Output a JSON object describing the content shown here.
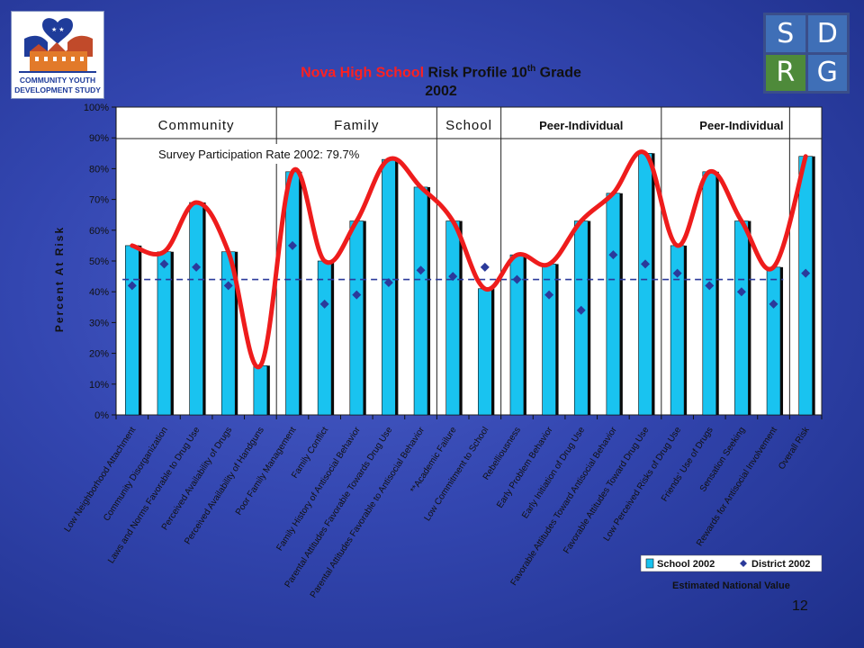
{
  "page": {
    "number": "12"
  },
  "logo_left": {
    "text_line1": "COMMUNITY YOUTH",
    "text_line2": "DEVELOPMENT STUDY"
  },
  "logo_right": {
    "letters": [
      "S",
      "D",
      "R",
      "G"
    ]
  },
  "title": {
    "line1_red": "Nova High School",
    "line1_black": " Risk Profile 10",
    "line1_sup": "th",
    "line1_tail": " Grade",
    "line2": "2002"
  },
  "note": "Estimated National Value",
  "chart_data": {
    "type": "bar",
    "ylabel": "Percent At Risk",
    "ylim": [
      0,
      100
    ],
    "yticks": [
      "0%",
      "10%",
      "20%",
      "30%",
      "40%",
      "50%",
      "60%",
      "70%",
      "80%",
      "90%",
      "100%"
    ],
    "grid": false,
    "domains": [
      {
        "label": "Community",
        "span": [
          0,
          4
        ]
      },
      {
        "label": "Family",
        "span": [
          5,
          9
        ]
      },
      {
        "label": "School",
        "span": [
          10,
          11
        ]
      },
      {
        "label": "Peer-Individual",
        "span": [
          12,
          16
        ]
      },
      {
        "label": "Peer-Individual",
        "span": [
          17,
          21
        ]
      }
    ],
    "annotation": "Survey Participation Rate 2002: 79.7%",
    "categories": [
      "Low Neighborhood Attachment",
      "Community Disorganization",
      "Laws and Norms Favorable to Drug Use",
      "Perceived Availability of Drugs",
      "Perceived Availability of Handguns",
      "Poor Family Management",
      "Family Conflict",
      "Family History of Antisocial Behavior",
      "Parental Attitudes Favorable Towards Drug Use",
      "Parental Attitudes Favorable to Antisocial Behavior",
      "**Academic Failure",
      "Low Commitment to School",
      "Rebelliousness",
      "Early Problem Behavior",
      "Early Initiation of Drug Use",
      "Favorable Attitudes Toward Antisocial Behavior",
      "Favorable Attitudes Toward Drug Use",
      "Low Perceived Risks of Drug Use",
      "Friends' Use of Drugs",
      "Sensation Seeking",
      "Rewards for Antisocial Involvement",
      "Overall Risk"
    ],
    "series": [
      {
        "name": "School 2002",
        "type": "bar",
        "color": "#19c3f0",
        "values": [
          55,
          53,
          69,
          53,
          16,
          79,
          50,
          63,
          83,
          74,
          63,
          41,
          52,
          49,
          63,
          72,
          85,
          55,
          79,
          63,
          48,
          84
        ]
      },
      {
        "name": "District 2002",
        "type": "marker",
        "color": "#2b3a9a",
        "values": [
          42,
          49,
          48,
          42,
          null,
          55,
          36,
          39,
          43,
          47,
          45,
          48,
          44,
          39,
          34,
          52,
          49,
          46,
          42,
          40,
          36,
          46
        ]
      },
      {
        "name": "",
        "type": "line",
        "color": "#ee1c1c",
        "values": [
          55,
          53,
          69,
          53,
          16,
          79,
          50,
          63,
          83,
          74,
          63,
          41,
          52,
          49,
          63,
          72,
          85,
          55,
          79,
          63,
          48,
          84
        ]
      }
    ],
    "reference_line": {
      "value": 44,
      "style": "dashed",
      "color": "#2b3a9a"
    },
    "legend": [
      "School 2002",
      "District 2002"
    ],
    "legend_position": "bottom-right"
  }
}
